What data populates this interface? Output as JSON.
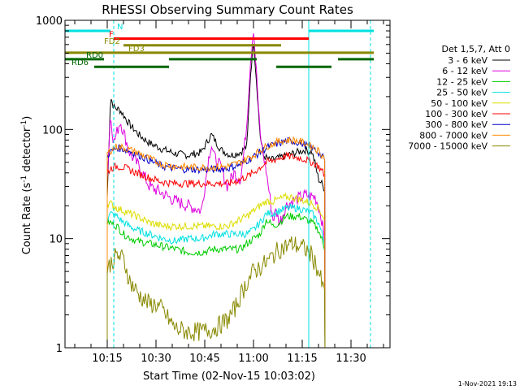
{
  "chart_data": {
    "type": "line",
    "title": "RHESSI Observing Summary Count Rates",
    "xlabel": "Start Time (02-Nov-15 10:03:02)",
    "ylabel": "Count Rate (s⁻¹ detector⁻¹)",
    "ylabel_parts": [
      "Count Rate (s",
      "-1",
      " detector",
      "-1",
      ")"
    ],
    "yscale": "log",
    "ylim": [
      1,
      1000
    ],
    "xlim_minutes": [
      2,
      102
    ],
    "x_ticks": [
      {
        "label": "10:15",
        "min": 15
      },
      {
        "label": "10:30",
        "min": 30
      },
      {
        "label": "10:45",
        "min": 45
      },
      {
        "label": "11:00",
        "min": 60
      },
      {
        "label": "11:15",
        "min": 75
      },
      {
        "label": "11:30",
        "min": 90
      }
    ],
    "y_ticks": [
      {
        "label": "1",
        "value": 1
      },
      {
        "label": "10",
        "value": 10
      },
      {
        "label": "100",
        "value": 100
      },
      {
        "label": "1000",
        "value": 1000
      }
    ],
    "legend_header": "Det 1,5,7, Att 0",
    "series": [
      {
        "name": "3 - 6 keV",
        "color": "#000000",
        "x": [
          15,
          16,
          17,
          19,
          22,
          25,
          28,
          32,
          36,
          40,
          44,
          47,
          50,
          53,
          56,
          58,
          59,
          60,
          61,
          62,
          63,
          65,
          68,
          72,
          76,
          78,
          79,
          80,
          81,
          82
        ],
        "values": [
          24,
          200,
          160,
          150,
          110,
          88,
          75,
          66,
          60,
          58,
          62,
          90,
          65,
          58,
          62,
          70,
          300,
          650,
          260,
          90,
          58,
          52,
          55,
          60,
          65,
          62,
          48,
          35,
          32,
          28
        ]
      },
      {
        "name": "6 - 12 keV",
        "color": "#dd00dd",
        "x": [
          15,
          16,
          17,
          19,
          22,
          25,
          28,
          32,
          36,
          40,
          44,
          46,
          47,
          48,
          50,
          52,
          54,
          56,
          57,
          58,
          59,
          60,
          61,
          62,
          64,
          66,
          67,
          68,
          70,
          72,
          76,
          79,
          80,
          81,
          82
        ],
        "values": [
          35,
          140,
          75,
          120,
          60,
          45,
          30,
          26,
          22,
          20,
          18,
          50,
          75,
          55,
          45,
          30,
          40,
          35,
          60,
          120,
          400,
          850,
          300,
          90,
          40,
          15,
          18,
          14,
          20,
          22,
          25,
          24,
          20,
          15,
          9
        ]
      },
      {
        "name": "12 - 25 keV",
        "color": "#00cc00",
        "x": [
          15,
          16,
          18,
          20,
          24,
          28,
          32,
          36,
          40,
          44,
          48,
          52,
          54,
          56,
          58,
          60,
          62,
          64,
          66,
          68,
          70,
          72,
          74,
          76,
          78,
          80,
          82
        ],
        "values": [
          14,
          14,
          13,
          11,
          9.5,
          9,
          8.5,
          8,
          7.5,
          7.5,
          8,
          8,
          8,
          8,
          9,
          10,
          11,
          15,
          13,
          14,
          16,
          16,
          16,
          15,
          14,
          12,
          8
        ]
      },
      {
        "name": "25 - 50 keV",
        "color": "#00e0e0",
        "x": [
          15,
          16,
          18,
          20,
          24,
          28,
          32,
          36,
          40,
          44,
          48,
          52,
          54,
          56,
          58,
          60,
          62,
          64,
          66,
          68,
          70,
          72,
          74,
          76,
          78,
          80,
          82
        ],
        "values": [
          15,
          17,
          16,
          14,
          12,
          11,
          10,
          9.5,
          10,
          10,
          11,
          11,
          11,
          11,
          11,
          12,
          14,
          17,
          17,
          18,
          19,
          19,
          19,
          18,
          17,
          14,
          9
        ]
      },
      {
        "name": "50 - 100 keV",
        "color": "#dddd00",
        "x": [
          15,
          16,
          18,
          20,
          24,
          28,
          32,
          36,
          40,
          44,
          48,
          52,
          54,
          56,
          58,
          60,
          62,
          64,
          66,
          68,
          70,
          72,
          74,
          76,
          78,
          80,
          82
        ],
        "values": [
          21,
          21,
          19,
          18,
          16,
          14,
          13,
          13,
          13,
          13,
          13,
          13,
          14,
          15,
          16,
          18,
          20,
          22,
          22,
          23,
          24,
          24,
          23,
          22,
          21,
          19,
          15
        ]
      },
      {
        "name": "100 - 300 keV",
        "color": "#ff0000",
        "x": [
          15,
          16,
          18,
          20,
          24,
          28,
          32,
          36,
          40,
          44,
          48,
          52,
          54,
          56,
          58,
          60,
          62,
          64,
          66,
          68,
          70,
          72,
          74,
          76,
          78,
          80,
          82
        ],
        "values": [
          40,
          44,
          46,
          45,
          40,
          36,
          33,
          32,
          32,
          32,
          32,
          32,
          33,
          35,
          37,
          40,
          45,
          50,
          52,
          55,
          57,
          56,
          55,
          53,
          50,
          46,
          38
        ]
      },
      {
        "name": "300 - 800 keV",
        "color": "#0000cc",
        "x": [
          15,
          16,
          18,
          20,
          24,
          28,
          32,
          36,
          40,
          44,
          48,
          52,
          54,
          56,
          58,
          60,
          62,
          64,
          66,
          68,
          70,
          72,
          74,
          76,
          78,
          80,
          82
        ],
        "values": [
          58,
          62,
          68,
          66,
          60,
          52,
          46,
          44,
          43,
          43,
          43,
          44,
          46,
          48,
          52,
          56,
          62,
          68,
          72,
          75,
          78,
          78,
          76,
          72,
          68,
          62,
          52
        ]
      },
      {
        "name": "800 - 7000 keV",
        "color": "#ff8800",
        "x": [
          15,
          16,
          18,
          20,
          24,
          28,
          32,
          36,
          40,
          44,
          48,
          52,
          54,
          56,
          58,
          60,
          62,
          64,
          66,
          68,
          70,
          72,
          74,
          76,
          78,
          80,
          82
        ],
        "values": [
          60,
          64,
          70,
          68,
          62,
          54,
          48,
          46,
          45,
          45,
          45,
          46,
          48,
          50,
          54,
          58,
          64,
          70,
          74,
          78,
          80,
          80,
          78,
          74,
          70,
          64,
          54
        ]
      },
      {
        "name": "7000 - 15000 keV",
        "color": "#888800",
        "x": [
          15,
          16,
          18,
          20,
          22,
          25,
          28,
          30,
          32,
          34,
          36,
          40,
          44,
          48,
          52,
          54,
          56,
          58,
          60,
          62,
          64,
          66,
          68,
          70,
          72,
          74,
          76,
          78,
          80,
          82
        ],
        "values": [
          5,
          6,
          7,
          6.5,
          4,
          3,
          2.5,
          2.5,
          2.2,
          1.8,
          1.5,
          1.4,
          1.4,
          1.5,
          1.8,
          2.2,
          3,
          4,
          5,
          5.5,
          6,
          7,
          8,
          8.5,
          9,
          8.5,
          8,
          7,
          5,
          3
        ]
      }
    ],
    "flag_bars": [
      {
        "label": "N",
        "color": "#00e0e0",
        "y": 800,
        "label_min": 18,
        "segments": [
          [
            2,
            16
          ],
          [
            77,
            97
          ]
        ]
      },
      {
        "label": "F",
        "color": "#ff0000",
        "y": 680,
        "label_min": 15.5,
        "segments": [
          [
            17,
            77
          ]
        ]
      },
      {
        "label": "FD2",
        "color": "#888800",
        "y": 590,
        "label_min": 14,
        "segments": [
          [
            20,
            68.5
          ]
        ]
      },
      {
        "label": "FD3",
        "color": "#888800",
        "y": 505,
        "label_min": 21.5,
        "segments": [
          [
            2,
            97
          ]
        ]
      },
      {
        "label": "RD0",
        "color": "#006600",
        "y": 440,
        "label_min": 8.5,
        "segments": [
          [
            2,
            14
          ],
          [
            34,
            61
          ],
          [
            86,
            97
          ]
        ]
      },
      {
        "label": "RD6",
        "color": "#006600",
        "y": 375,
        "label_min": 4,
        "segments": [
          [
            11,
            34
          ],
          [
            67,
            84
          ]
        ]
      }
    ],
    "markers": [
      {
        "color": "#00e0e0",
        "style": "dashed",
        "min": 17
      },
      {
        "color": "#00e0e0",
        "style": "solid",
        "min": 77
      },
      {
        "color": "#00e0e0",
        "style": "dashed",
        "min": 96
      },
      {
        "color": "#00e0e0",
        "style": "solid",
        "min": 2
      }
    ]
  },
  "footer_stamp": "1-Nov-2021 19:13"
}
